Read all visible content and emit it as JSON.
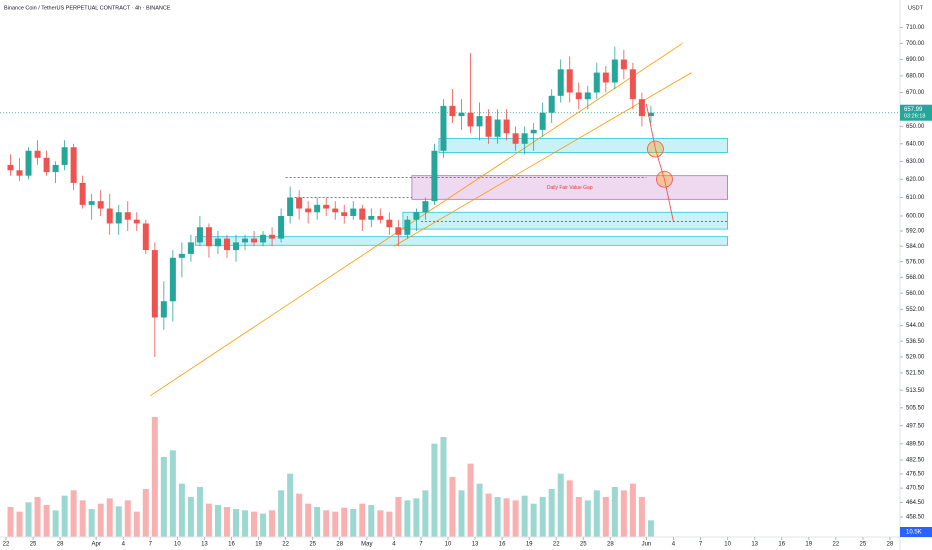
{
  "chart_data": {
    "type": "candlestick",
    "title": "Binance Coin / TetherUS PERPETUAL CONTRACT · 4h · BINANCE",
    "currency": "USDT",
    "last_price": {
      "value": 657.99,
      "label": "657.99"
    },
    "countdown": "03:26:18",
    "volume_label": "10.5K",
    "annotation": "Daily Fair Value Gap",
    "log_scale": true,
    "ylim": [
      450.4,
      727.7
    ],
    "yticks": [
      {
        "value": 710,
        "label": "710.00"
      },
      {
        "value": 700,
        "label": "700.00"
      },
      {
        "value": 690,
        "label": "690.00"
      },
      {
        "value": 680,
        "label": "680.00"
      },
      {
        "value": 670,
        "label": "670.00"
      },
      {
        "value": 650,
        "label": "650.00"
      },
      {
        "value": 640,
        "label": "640.00"
      },
      {
        "value": 630,
        "label": "630.00"
      },
      {
        "value": 620,
        "label": "620.00"
      },
      {
        "value": 610,
        "label": "610.00"
      },
      {
        "value": 600,
        "label": "600.00"
      },
      {
        "value": 592,
        "label": "592.00"
      },
      {
        "value": 584,
        "label": "584.00"
      },
      {
        "value": 576,
        "label": "576.00"
      },
      {
        "value": 568,
        "label": "568.00"
      },
      {
        "value": 560,
        "label": "560.00"
      },
      {
        "value": 552,
        "label": "552.00"
      },
      {
        "value": 544,
        "label": "544.00"
      },
      {
        "value": 536.5,
        "label": "536.50"
      },
      {
        "value": 529,
        "label": "529.00"
      },
      {
        "value": 521.5,
        "label": "521.50"
      },
      {
        "value": 513.5,
        "label": "513.50"
      },
      {
        "value": 505.5,
        "label": "505.50"
      },
      {
        "value": 497.5,
        "label": "497.50"
      },
      {
        "value": 489.5,
        "label": "489.50"
      },
      {
        "value": 482.5,
        "label": "482.50"
      },
      {
        "value": 476.5,
        "label": "476.50"
      },
      {
        "value": 470.5,
        "label": "470.50"
      },
      {
        "value": 464.5,
        "label": "464.50"
      },
      {
        "value": 458.5,
        "label": "458.50"
      }
    ],
    "xticks": [
      {
        "value": "Mar 22",
        "label": "22"
      },
      {
        "value": "Mar 25",
        "label": "25"
      },
      {
        "value": "Mar 28",
        "label": "28"
      },
      {
        "value": "Apr 1",
        "label": "Apr"
      },
      {
        "value": "Apr 4",
        "label": "4"
      },
      {
        "value": "Apr 7",
        "label": "7"
      },
      {
        "value": "Apr 10",
        "label": "10"
      },
      {
        "value": "Apr 13",
        "label": "13"
      },
      {
        "value": "Apr 16",
        "label": "16"
      },
      {
        "value": "Apr 19",
        "label": "19"
      },
      {
        "value": "Apr 22",
        "label": "22"
      },
      {
        "value": "Apr 25",
        "label": "25"
      },
      {
        "value": "Apr 28",
        "label": "28"
      },
      {
        "value": "May 1",
        "label": "May"
      },
      {
        "value": "May 4",
        "label": "4"
      },
      {
        "value": "May 7",
        "label": "7"
      },
      {
        "value": "May 10",
        "label": "10"
      },
      {
        "value": "May 13",
        "label": "13"
      },
      {
        "value": "May 16",
        "label": "16"
      },
      {
        "value": "May 19",
        "label": "19"
      },
      {
        "value": "May 22",
        "label": "22"
      },
      {
        "value": "May 25",
        "label": "25"
      },
      {
        "value": "May 28",
        "label": "28"
      },
      {
        "value": "Jun 1",
        "label": "Jun"
      },
      {
        "value": "Jun 4",
        "label": "4"
      },
      {
        "value": "Jun 7",
        "label": "7"
      },
      {
        "value": "Jun 10",
        "label": "10"
      },
      {
        "value": "Jun 13",
        "label": "13"
      },
      {
        "value": "Jun 16",
        "label": "16"
      },
      {
        "value": "Jun 19",
        "label": "19"
      },
      {
        "value": "Jun 22",
        "label": "22"
      },
      {
        "value": "Jun 25",
        "label": "25"
      },
      {
        "value": "Jun 28",
        "label": "28"
      }
    ],
    "x": [
      "Mar 22",
      "Mar 23",
      "Mar 24",
      "Mar 25",
      "Mar 26",
      "Mar 27",
      "Mar 28",
      "Mar 29",
      "Mar 30",
      "Mar 31",
      "Apr 1",
      "Apr 2",
      "Apr 3",
      "Apr 4",
      "Apr 5",
      "Apr 6",
      "Apr 7",
      "Apr 8",
      "Apr 9",
      "Apr 10",
      "Apr 11",
      "Apr 12",
      "Apr 13",
      "Apr 14",
      "Apr 15",
      "Apr 16",
      "Apr 17",
      "Apr 18",
      "Apr 19",
      "Apr 20",
      "Apr 21",
      "Apr 22",
      "Apr 23",
      "Apr 24",
      "Apr 25",
      "Apr 26",
      "Apr 27",
      "Apr 28",
      "Apr 29",
      "Apr 30",
      "May 1",
      "May 2",
      "May 3",
      "May 4",
      "May 5",
      "May 6",
      "May 7",
      "May 8",
      "May 9",
      "May 10",
      "May 11",
      "May 12",
      "May 13",
      "May 14",
      "May 15",
      "May 16",
      "May 17",
      "May 18",
      "May 19",
      "May 20",
      "May 21",
      "May 22",
      "May 23",
      "May 24",
      "May 25",
      "May 26",
      "May 27",
      "May 28",
      "May 29",
      "May 30",
      "May 31",
      "Jun 1"
    ],
    "open": [
      628,
      625,
      622,
      636,
      632,
      624,
      628,
      638,
      618,
      606,
      608,
      604,
      596,
      602,
      598,
      596,
      582,
      548,
      556,
      578,
      580,
      586,
      594,
      584,
      588,
      582,
      586,
      588,
      586,
      590,
      588,
      600,
      610,
      604,
      602,
      606,
      604,
      602,
      600,
      604,
      598,
      600,
      598,
      594,
      590,
      598,
      602,
      608,
      636,
      662,
      656,
      658,
      650,
      656,
      644,
      654,
      646,
      640,
      646,
      648,
      658,
      668,
      684,
      670,
      666,
      670,
      682,
      676,
      690,
      684,
      666,
      656
    ],
    "high": [
      634,
      632,
      638,
      642,
      636,
      630,
      642,
      640,
      622,
      612,
      614,
      612,
      606,
      608,
      602,
      598,
      586,
      566,
      582,
      586,
      590,
      600,
      596,
      592,
      590,
      590,
      590,
      592,
      592,
      594,
      604,
      616,
      614,
      608,
      610,
      610,
      608,
      606,
      608,
      606,
      604,
      604,
      602,
      598,
      600,
      604,
      610,
      640,
      666,
      672,
      666,
      694,
      664,
      660,
      660,
      660,
      650,
      650,
      652,
      664,
      672,
      690,
      692,
      676,
      674,
      688,
      686,
      698,
      696,
      688,
      670,
      662
    ],
    "low": [
      622,
      619,
      620,
      628,
      622,
      618,
      625,
      614,
      604,
      598,
      600,
      590,
      590,
      592,
      592,
      580,
      529,
      542,
      546,
      568,
      576,
      584,
      578,
      580,
      578,
      576,
      582,
      584,
      584,
      584,
      586,
      596,
      598,
      596,
      598,
      600,
      598,
      596,
      598,
      592,
      594,
      596,
      590,
      584,
      588,
      592,
      598,
      606,
      632,
      652,
      648,
      646,
      642,
      640,
      640,
      642,
      636,
      634,
      636,
      644,
      652,
      664,
      664,
      660,
      660,
      666,
      670,
      672,
      678,
      660,
      650,
      652
    ],
    "close": [
      625,
      622,
      636,
      632,
      624,
      628,
      638,
      618,
      606,
      608,
      604,
      596,
      602,
      598,
      596,
      582,
      548,
      556,
      578,
      580,
      586,
      594,
      584,
      588,
      582,
      586,
      588,
      586,
      590,
      588,
      600,
      610,
      604,
      602,
      606,
      604,
      602,
      600,
      604,
      598,
      600,
      598,
      594,
      590,
      598,
      602,
      608,
      636,
      662,
      656,
      658,
      650,
      656,
      644,
      654,
      646,
      640,
      646,
      648,
      658,
      668,
      684,
      670,
      666,
      670,
      682,
      676,
      690,
      684,
      666,
      656,
      658
    ],
    "volume": [
      45,
      38,
      52,
      60,
      48,
      40,
      62,
      70,
      55,
      42,
      50,
      58,
      46,
      55,
      38,
      72,
      180,
      120,
      130,
      80,
      60,
      75,
      50,
      48,
      45,
      42,
      40,
      38,
      35,
      40,
      70,
      95,
      65,
      50,
      45,
      40,
      38,
      44,
      42,
      50,
      48,
      40,
      38,
      60,
      55,
      58,
      70,
      140,
      150,
      90,
      70,
      110,
      80,
      65,
      60,
      58,
      55,
      62,
      50,
      60,
      72,
      95,
      85,
      60,
      55,
      70,
      60,
      75,
      70,
      80,
      60,
      25
    ],
    "zones": [
      {
        "from": "Apr 12",
        "to": "Jun 10",
        "range": [
          584.5,
          589
        ],
        "color": "#26c6da"
      },
      {
        "from": "May 5",
        "to": "Jun 10",
        "range": [
          593,
          602
        ],
        "color": "#26c6da"
      },
      {
        "from": "May 6",
        "to": "Jun 10",
        "range": [
          609,
          622
        ],
        "color": "#ba68c8"
      },
      {
        "from": "May 9",
        "to": "Jun 10",
        "range": [
          635,
          643
        ],
        "color": "#26c6da"
      }
    ],
    "levels": [
      {
        "from": "Apr 22",
        "to": "Jun 1",
        "price": 621
      },
      {
        "from": "Apr 23",
        "to": "May 6",
        "price": 610
      },
      {
        "from": "May 7",
        "to": "Jun 10",
        "price": 597
      }
    ],
    "trendlines": [
      {
        "from": "Apr 7",
        "to": "Jun 5",
        "prices": [
          511,
          700
        ],
        "color": "#ff9800"
      },
      {
        "from": "May 4",
        "to": "Jun 6",
        "prices": [
          584,
          682
        ],
        "color": "#ff9800"
      }
    ],
    "projection": {
      "dates": [
        "Jun 1",
        "Jun 2",
        "Jun 3",
        "Jun 4"
      ],
      "prices": [
        663,
        637,
        620,
        597
      ]
    }
  }
}
